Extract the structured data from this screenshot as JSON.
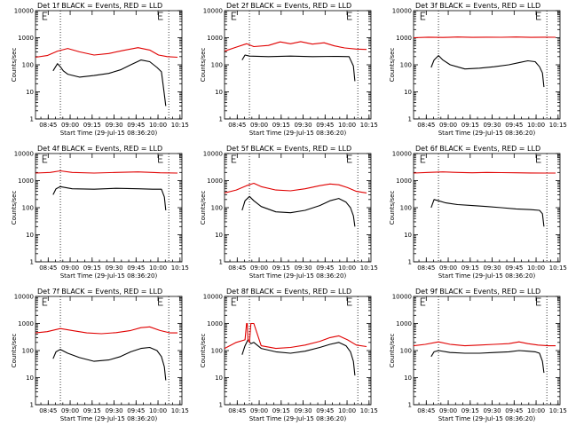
{
  "figure": {
    "rows": 3,
    "cols": 3,
    "background": "#ffffff"
  },
  "colors": {
    "events": "#000000",
    "lld": "#e00000"
  },
  "time_ticks": [
    "08:45",
    "09:00",
    "09:15",
    "09:30",
    "09:45",
    "10:00",
    "10:15"
  ],
  "y_ticks": [
    "1",
    "10",
    "100",
    "1000",
    "10000"
  ],
  "chart_data": [
    {
      "type": "line",
      "title": "Det 1f BLACK = Events, RED = LLD",
      "ylabel": "Counts/sec",
      "xlabel": "Start Time (29-Jul-15 08:36:20)",
      "x_range_min": [
        0,
        100
      ],
      "ylim": [
        1,
        10000
      ],
      "y_scale": "log",
      "grid": false,
      "dotted_min": [
        17,
        91
      ],
      "e_marker_min": [
        5,
        84
      ],
      "series": [
        {
          "name": "Events",
          "color": "#000000",
          "x_min": [
            12,
            15,
            17,
            19,
            22,
            30,
            40,
            50,
            58,
            65,
            72,
            78,
            83,
            86,
            88,
            89
          ],
          "y": [
            60,
            110,
            85,
            60,
            45,
            35,
            40,
            48,
            65,
            100,
            150,
            130,
            80,
            55,
            8,
            3
          ]
        },
        {
          "name": "LLD",
          "color": "#e00000",
          "x_min": [
            0,
            8,
            15,
            22,
            30,
            40,
            50,
            60,
            70,
            78,
            84,
            90,
            97
          ],
          "y": [
            190,
            220,
            320,
            400,
            300,
            230,
            260,
            340,
            430,
            350,
            230,
            200,
            190
          ]
        }
      ]
    },
    {
      "type": "line",
      "title": "Det 2f BLACK = Events, RED = LLD",
      "ylabel": "Counts/sec",
      "xlabel": "Start Time (29-Jul-15 08:36:20)",
      "x_range_min": [
        0,
        100
      ],
      "ylim": [
        1,
        10000
      ],
      "y_scale": "log",
      "grid": false,
      "dotted_min": [
        17,
        91
      ],
      "e_marker_min": [
        5,
        84
      ],
      "series": [
        {
          "name": "Events",
          "color": "#000000",
          "x_min": [
            12,
            14,
            17,
            30,
            45,
            60,
            75,
            85,
            88,
            89
          ],
          "y": [
            150,
            230,
            210,
            200,
            210,
            200,
            205,
            200,
            90,
            25
          ]
        },
        {
          "name": "LLD",
          "color": "#e00000",
          "x_min": [
            0,
            8,
            15,
            20,
            30,
            38,
            45,
            52,
            60,
            68,
            75,
            82,
            90,
            97
          ],
          "y": [
            320,
            450,
            600,
            470,
            520,
            700,
            600,
            720,
            580,
            650,
            500,
            420,
            380,
            370
          ]
        }
      ]
    },
    {
      "type": "line",
      "title": "Det 3f BLACK = Events, RED = LLD",
      "ylabel": "Counts/sec",
      "xlabel": "Start Time (29-Jul-15 08:36:20)",
      "x_range_min": [
        0,
        100
      ],
      "ylim": [
        1,
        10000
      ],
      "y_scale": "log",
      "grid": false,
      "dotted_min": [
        17,
        91
      ],
      "e_marker_min": [
        5,
        84
      ],
      "series": [
        {
          "name": "Events",
          "color": "#000000",
          "x_min": [
            12,
            14,
            17,
            20,
            25,
            35,
            45,
            55,
            65,
            72,
            78,
            83,
            86,
            88,
            89
          ],
          "y": [
            80,
            150,
            220,
            150,
            100,
            70,
            75,
            85,
            100,
            120,
            140,
            130,
            85,
            50,
            15
          ]
        },
        {
          "name": "LLD",
          "color": "#e00000",
          "x_min": [
            0,
            10,
            20,
            30,
            40,
            50,
            60,
            70,
            80,
            90,
            97
          ],
          "y": [
            1000,
            1050,
            1020,
            1060,
            1030,
            1050,
            1040,
            1060,
            1030,
            1050,
            1040
          ]
        }
      ]
    },
    {
      "type": "line",
      "title": "Det 4f BLACK = Events, RED = LLD",
      "ylabel": "Counts/sec",
      "xlabel": "Start Time (29-Jul-15 08:36:20)",
      "x_range_min": [
        0,
        100
      ],
      "ylim": [
        1,
        10000
      ],
      "y_scale": "log",
      "grid": false,
      "dotted_min": [
        17,
        91
      ],
      "e_marker_min": [
        5,
        84
      ],
      "series": [
        {
          "name": "Events",
          "color": "#000000",
          "x_min": [
            12,
            14,
            17,
            25,
            40,
            55,
            70,
            80,
            86,
            88,
            89
          ],
          "y": [
            300,
            500,
            600,
            500,
            480,
            520,
            500,
            480,
            480,
            250,
            80
          ]
        },
        {
          "name": "LLD",
          "color": "#e00000",
          "x_min": [
            0,
            10,
            17,
            25,
            40,
            55,
            70,
            85,
            97
          ],
          "y": [
            1900,
            2000,
            2300,
            2000,
            1900,
            2000,
            2100,
            1950,
            1900
          ]
        }
      ]
    },
    {
      "type": "line",
      "title": "Det 5f BLACK = Events, RED = LLD",
      "ylabel": "Counts/sec",
      "xlabel": "Start Time (29-Jul-15 08:36:20)",
      "x_range_min": [
        0,
        100
      ],
      "ylim": [
        1,
        10000
      ],
      "y_scale": "log",
      "grid": false,
      "dotted_min": [
        17,
        91
      ],
      "e_marker_min": [
        5,
        84
      ],
      "series": [
        {
          "name": "Events",
          "color": "#000000",
          "x_min": [
            12,
            14,
            17,
            20,
            25,
            35,
            45,
            55,
            65,
            72,
            78,
            83,
            86,
            88,
            89
          ],
          "y": [
            80,
            180,
            260,
            180,
            110,
            70,
            65,
            80,
            120,
            180,
            220,
            160,
            100,
            50,
            20
          ]
        },
        {
          "name": "LLD",
          "color": "#e00000",
          "x_min": [
            0,
            8,
            15,
            20,
            25,
            35,
            45,
            55,
            65,
            72,
            78,
            84,
            90,
            97
          ],
          "y": [
            350,
            450,
            650,
            800,
            600,
            450,
            420,
            500,
            650,
            750,
            700,
            550,
            400,
            350
          ]
        }
      ]
    },
    {
      "type": "line",
      "title": "Det 6f BLACK = Events, RED = LLD",
      "ylabel": "Counts/sec",
      "xlabel": "Start Time (29-Jul-15 08:36:20)",
      "x_range_min": [
        0,
        100
      ],
      "ylim": [
        1,
        10000
      ],
      "y_scale": "log",
      "grid": false,
      "dotted_min": [
        17,
        91
      ],
      "e_marker_min": [
        5,
        84
      ],
      "series": [
        {
          "name": "Events",
          "color": "#000000",
          "x_min": [
            12,
            14,
            17,
            22,
            30,
            40,
            50,
            60,
            70,
            80,
            86,
            88,
            89
          ],
          "y": [
            100,
            200,
            180,
            150,
            130,
            120,
            110,
            100,
            90,
            85,
            80,
            60,
            20
          ]
        },
        {
          "name": "LLD",
          "color": "#e00000",
          "x_min": [
            0,
            10,
            20,
            30,
            40,
            50,
            60,
            70,
            80,
            90,
            97
          ],
          "y": [
            1900,
            2000,
            2100,
            2000,
            1950,
            2000,
            1980,
            1950,
            1920,
            1900,
            1900
          ]
        }
      ]
    },
    {
      "type": "line",
      "title": "Det 7f BLACK = Events, RED = LLD",
      "ylabel": "Counts/sec",
      "xlabel": "Start Time (29-Jul-15 08:36:20)",
      "x_range_min": [
        0,
        100
      ],
      "ylim": [
        1,
        10000
      ],
      "y_scale": "log",
      "grid": false,
      "dotted_min": [
        17,
        91
      ],
      "e_marker_min": [
        5,
        84
      ],
      "series": [
        {
          "name": "Events",
          "color": "#000000",
          "x_min": [
            12,
            14,
            17,
            22,
            30,
            40,
            50,
            58,
            65,
            72,
            78,
            83,
            86,
            88,
            89
          ],
          "y": [
            50,
            90,
            110,
            80,
            55,
            40,
            45,
            60,
            90,
            120,
            130,
            100,
            60,
            25,
            8
          ]
        },
        {
          "name": "LLD",
          "color": "#e00000",
          "x_min": [
            0,
            8,
            17,
            25,
            35,
            45,
            55,
            65,
            72,
            78,
            85,
            92,
            97
          ],
          "y": [
            450,
            500,
            650,
            550,
            450,
            420,
            460,
            550,
            700,
            750,
            550,
            450,
            450
          ]
        }
      ]
    },
    {
      "type": "line",
      "title": "Det 8f BLACK = Events, RED = LLD",
      "ylabel": "Counts/sec",
      "xlabel": "Start Time (29-Jul-15 08:36:20)",
      "x_range_min": [
        0,
        100
      ],
      "ylim": [
        1,
        10000
      ],
      "y_scale": "log",
      "grid": false,
      "dotted_min": [
        17,
        91
      ],
      "e_marker_min": [
        5,
        84
      ],
      "series": [
        {
          "name": "Events",
          "color": "#000000",
          "x_min": [
            12,
            14,
            16,
            18,
            20,
            25,
            35,
            45,
            55,
            65,
            72,
            78,
            83,
            86,
            88,
            89
          ],
          "y": [
            70,
            150,
            250,
            180,
            200,
            120,
            90,
            80,
            95,
            130,
            170,
            200,
            150,
            90,
            40,
            12
          ]
        },
        {
          "name": "LLD",
          "color": "#e00000",
          "x_min": [
            0,
            8,
            14,
            15,
            15.5,
            16,
            17,
            18,
            20,
            25,
            35,
            45,
            55,
            65,
            72,
            78,
            84,
            90,
            97
          ],
          "y": [
            120,
            200,
            250,
            1000,
            1000,
            250,
            200,
            1000,
            1000,
            150,
            120,
            130,
            160,
            220,
            300,
            350,
            250,
            160,
            140
          ]
        }
      ]
    },
    {
      "type": "line",
      "title": "Det 9f BLACK = Events, RED = LLD",
      "ylabel": "Counts/sec",
      "xlabel": "Start Time (29-Jul-15 08:36:20)",
      "x_range_min": [
        0,
        100
      ],
      "ylim": [
        1,
        10000
      ],
      "y_scale": "log",
      "grid": false,
      "dotted_min": [
        17,
        91
      ],
      "e_marker_min": [
        5,
        84
      ],
      "series": [
        {
          "name": "Events",
          "color": "#000000",
          "x_min": [
            12,
            14,
            17,
            25,
            35,
            45,
            55,
            65,
            72,
            78,
            83,
            86,
            88,
            89
          ],
          "y": [
            60,
            90,
            100,
            85,
            80,
            80,
            85,
            90,
            100,
            95,
            90,
            80,
            40,
            15
          ]
        },
        {
          "name": "LLD",
          "color": "#e00000",
          "x_min": [
            0,
            8,
            17,
            25,
            35,
            45,
            55,
            65,
            72,
            78,
            85,
            92,
            97
          ],
          "y": [
            150,
            170,
            210,
            170,
            150,
            160,
            170,
            180,
            210,
            180,
            160,
            150,
            150
          ]
        }
      ]
    }
  ]
}
